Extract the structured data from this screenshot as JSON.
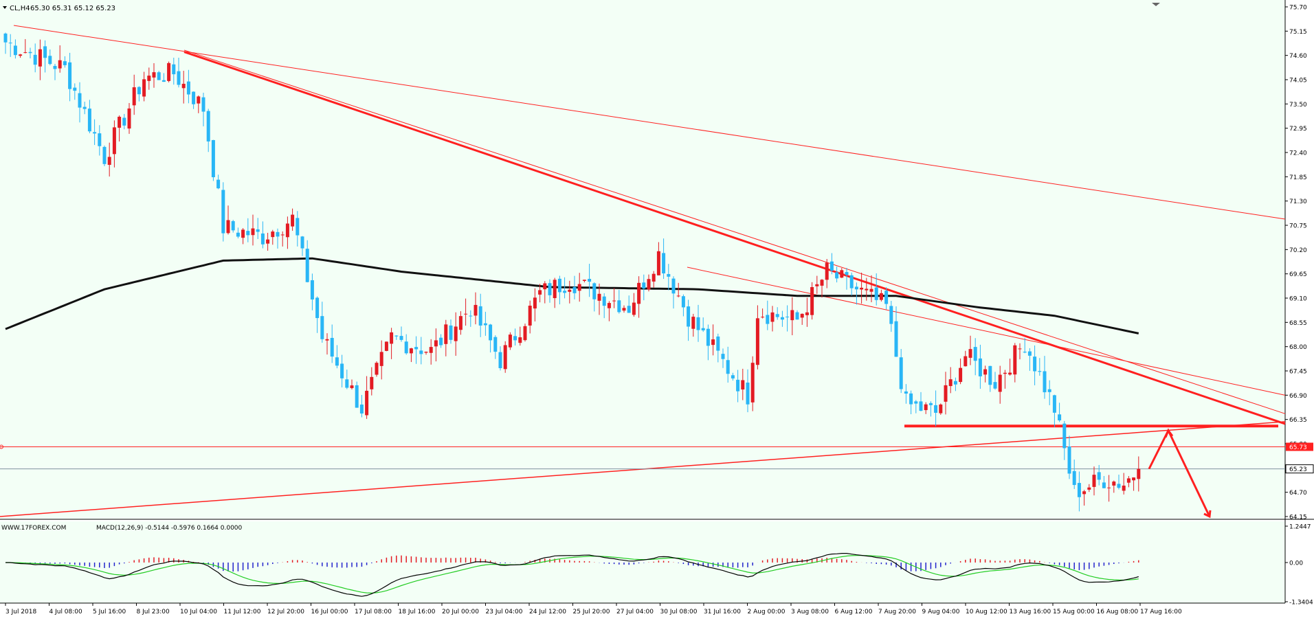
{
  "header": {
    "symbol": "CL,H4",
    "ohlc": "65.30 65.31 65.12 65.23"
  },
  "macd_header": "MACD(12,26,9) -0.5144 -0.5976 0.1664 0.0000",
  "watermark": "WWW.17FOREX.COM",
  "colors": {
    "background": "#f3fff6",
    "bull_candle": "#e31b23",
    "bear_candle": "#29b6f6",
    "ma": "#111111",
    "trendline": "#ff2020",
    "macd_pos": "#e31b23",
    "macd_neg": "#2222cc",
    "signal": "#22cc22",
    "macd_line": "#000000"
  },
  "chart_data": [
    {
      "type": "candlestick",
      "ylim": [
        64.15,
        75.7
      ],
      "y_ticks": [
        "75.70",
        "75.15",
        "74.60",
        "74.05",
        "73.50",
        "72.95",
        "72.40",
        "71.85",
        "71.30",
        "70.75",
        "70.20",
        "69.65",
        "69.10",
        "68.55",
        "68.00",
        "67.45",
        "66.90",
        "66.35",
        "65.80",
        "65.23",
        "64.70",
        "64.15"
      ],
      "x_labels": [
        "3 Jul 2018",
        "4 Jul 08:00",
        "5 Jul 16:00",
        "8 Jul 23:00",
        "10 Jul 04:00",
        "11 Jul 12:00",
        "12 Jul 20:00",
        "16 Jul 00:00",
        "17 Jul 08:00",
        "18 Jul 16:00",
        "20 Jul 00:00",
        "23 Jul 04:00",
        "24 Jul 12:00",
        "25 Jul 20:00",
        "27 Jul 04:00",
        "30 Jul 08:00",
        "31 Jul 16:00",
        "2 Aug 00:00",
        "3 Aug 08:00",
        "6 Aug 12:00",
        "7 Aug 20:00",
        "9 Aug 04:00",
        "10 Aug 12:00",
        "13 Aug 16:00",
        "15 Aug 00:00",
        "16 Aug 08:00",
        "17 Aug 16:00"
      ],
      "current_price_label": "65.23",
      "red_line_label": "65.73",
      "key_points": [
        {
          "x": 0,
          "close": 74.9
        },
        {
          "x": 12,
          "close": 74.3
        },
        {
          "x": 20,
          "close": 72.3
        },
        {
          "x": 28,
          "close": 74.1
        },
        {
          "x": 34,
          "close": 74.2
        },
        {
          "x": 40,
          "close": 73.4
        },
        {
          "x": 44,
          "close": 70.7
        },
        {
          "x": 52,
          "close": 70.5
        },
        {
          "x": 58,
          "close": 70.9
        },
        {
          "x": 64,
          "close": 68.2
        },
        {
          "x": 72,
          "close": 66.6
        },
        {
          "x": 78,
          "close": 68.2
        },
        {
          "x": 86,
          "close": 67.9
        },
        {
          "x": 94,
          "close": 68.9
        },
        {
          "x": 100,
          "close": 67.7
        },
        {
          "x": 108,
          "close": 69.2
        },
        {
          "x": 114,
          "close": 69.5
        },
        {
          "x": 120,
          "close": 69.2
        },
        {
          "x": 126,
          "close": 68.9
        },
        {
          "x": 132,
          "close": 70.1
        },
        {
          "x": 138,
          "close": 68.7
        },
        {
          "x": 146,
          "close": 67.5
        },
        {
          "x": 150,
          "close": 66.9
        },
        {
          "x": 152,
          "close": 68.8
        },
        {
          "x": 160,
          "close": 68.6
        },
        {
          "x": 166,
          "close": 69.7
        },
        {
          "x": 172,
          "close": 69.3
        },
        {
          "x": 178,
          "close": 68.9
        },
        {
          "x": 182,
          "close": 66.7
        },
        {
          "x": 188,
          "close": 66.5
        },
        {
          "x": 194,
          "close": 67.8
        },
        {
          "x": 200,
          "close": 67.2
        },
        {
          "x": 206,
          "close": 68.1
        },
        {
          "x": 212,
          "close": 66.6
        },
        {
          "x": 216,
          "close": 64.7
        },
        {
          "x": 222,
          "close": 65.0
        },
        {
          "x": 226,
          "close": 64.9
        },
        {
          "x": 229,
          "close": 65.23
        }
      ],
      "ma_points": [
        {
          "x": 0,
          "y": 68.4
        },
        {
          "x": 20,
          "y": 69.3
        },
        {
          "x": 44,
          "y": 69.95
        },
        {
          "x": 62,
          "y": 70.0
        },
        {
          "x": 80,
          "y": 69.7
        },
        {
          "x": 110,
          "y": 69.35
        },
        {
          "x": 140,
          "y": 69.3
        },
        {
          "x": 160,
          "y": 69.15
        },
        {
          "x": 180,
          "y": 69.15
        },
        {
          "x": 196,
          "y": 68.9
        },
        {
          "x": 212,
          "y": 68.7
        },
        {
          "x": 229,
          "y": 68.3
        }
      ]
    },
    {
      "type": "macd",
      "ylim": [
        -1.3404,
        1.2447
      ],
      "y_ticks": [
        "1.2447",
        "0.00",
        "-1.3404"
      ],
      "macd_value": -0.5144,
      "signal_value": -0.5976,
      "histogram_value": 0.1664
    }
  ]
}
